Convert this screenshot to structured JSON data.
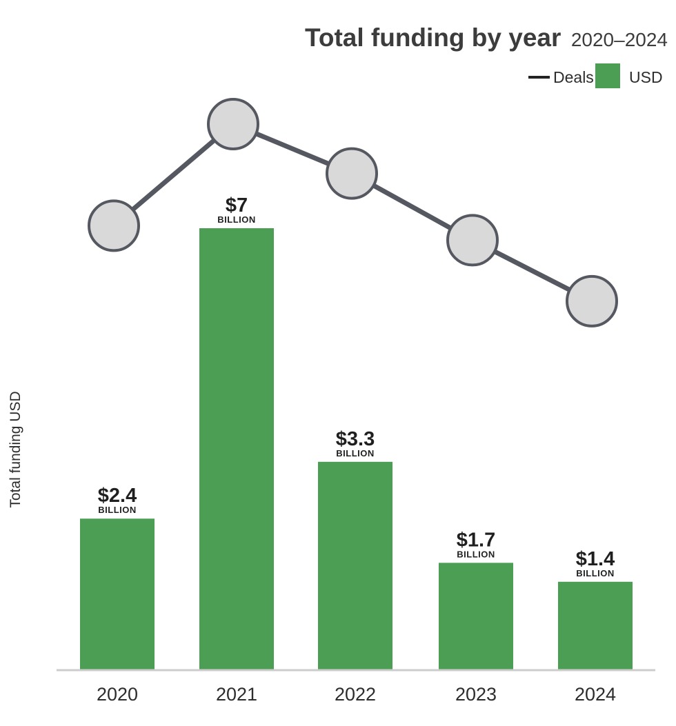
{
  "chart_data": {
    "type": "bar",
    "title": "Total funding by year",
    "subtitle": "2020–2024",
    "ylabel": "Total funding USD",
    "xlabel": "",
    "categories": [
      "2020",
      "2021",
      "2022",
      "2023",
      "2024"
    ],
    "series": [
      {
        "name": "USD",
        "kind": "bar",
        "values": [
          2.4,
          7,
          3.3,
          1.7,
          1.4
        ],
        "labels": [
          "$2.4",
          "$7",
          "$3.3",
          "$1.7",
          "$1.4"
        ],
        "unit_label": "BILLION",
        "color": "#4c9e55"
      },
      {
        "name": "Deals",
        "kind": "line",
        "values": [
          0.6,
          0.95,
          0.78,
          0.55,
          0.34
        ],
        "value_note": "relative level; no axis or values printed",
        "color": "#555860",
        "marker_fill": "#d9d9d9"
      }
    ],
    "ylim": [
      0,
      7
    ],
    "grid": false,
    "legend_position": "top-right",
    "legend": [
      {
        "label": "Deals",
        "type": "line",
        "color": "#222222"
      },
      {
        "label": "USD",
        "type": "box",
        "color": "#4c9e55"
      }
    ],
    "baseline_color": "#cccccc"
  }
}
